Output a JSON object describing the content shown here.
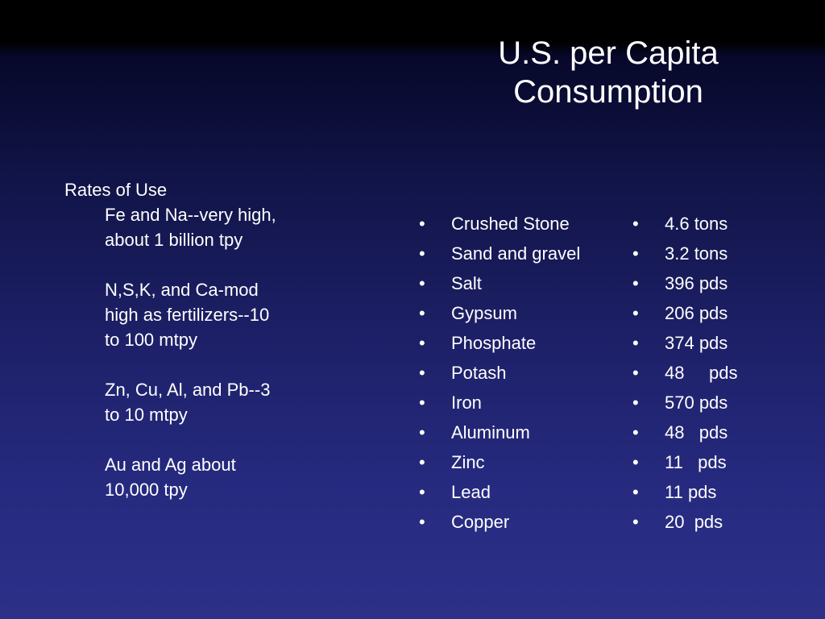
{
  "slide": {
    "title_lines": [
      "U.S. per Capita",
      "Consumption"
    ],
    "rates": {
      "heading": "Rates of Use",
      "blocks": [
        [
          "Fe and Na--very high,",
          "about 1 billion tpy"
        ],
        [
          "N,S,K, and Ca-mod",
          "high as fertilizers--10",
          "to 100 mtpy"
        ],
        [
          "Zn, Cu, Al, and Pb--3",
          "to 10 mtpy"
        ],
        [
          "Au and Ag about",
          "10,000 tpy"
        ]
      ]
    },
    "bullet_char": "•",
    "materials": [
      "Crushed Stone",
      "Sand and gravel",
      "Salt",
      "Gypsum",
      "Phosphate",
      "Potash",
      "Iron",
      "Aluminum",
      "Zinc",
      "Lead",
      "Copper"
    ],
    "amounts": [
      "4.6 tons",
      "3.2 tons",
      "396 pds",
      "206 pds",
      "374 pds",
      "48     pds",
      "570 pds",
      "48   pds",
      "11   pds",
      "11 pds",
      "20  pds"
    ]
  }
}
